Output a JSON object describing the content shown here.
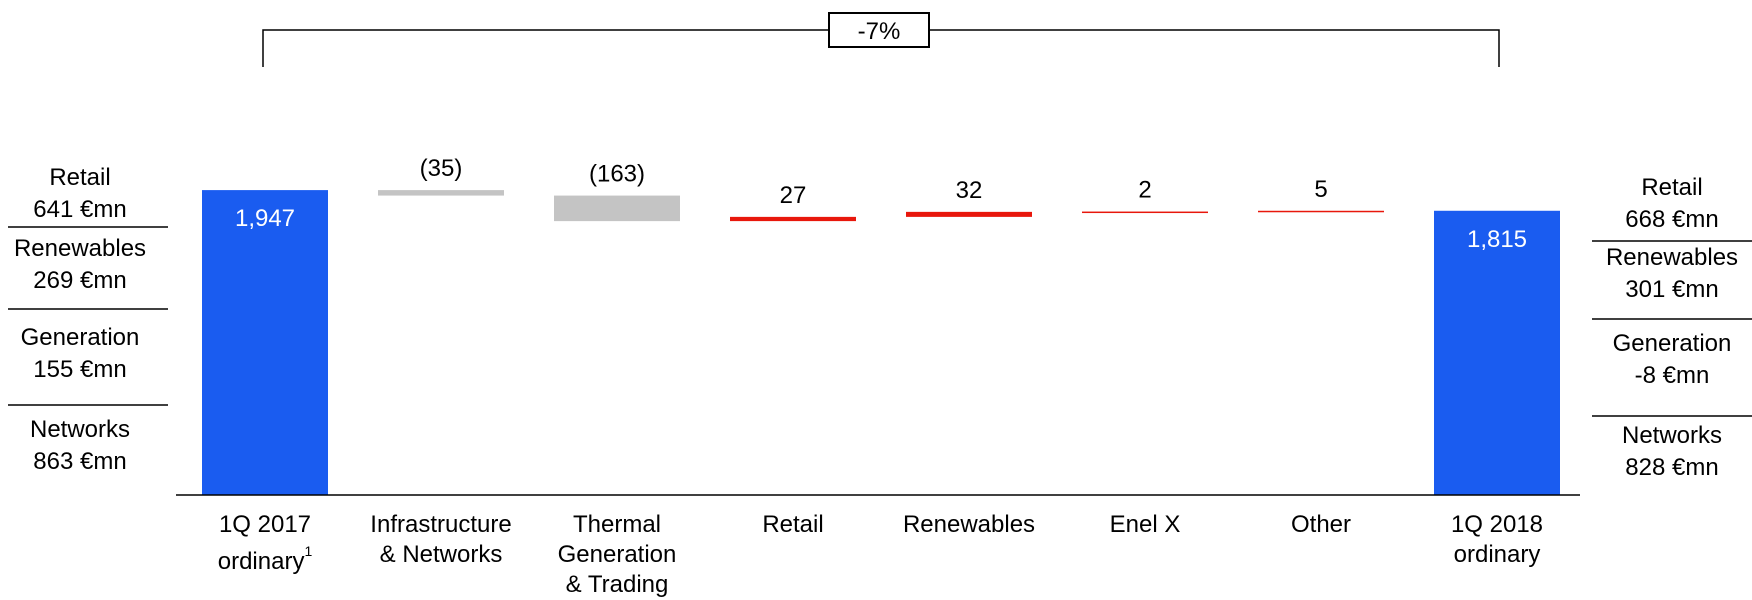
{
  "chart_data": {
    "type": "waterfall",
    "categories": [
      "1Q 2017\nordinary",
      "Infrastructure\n& Networks",
      "Thermal\nGeneration\n& Trading",
      "Retail",
      "Renewables",
      "Enel X",
      "Other",
      "1Q 2018\nordinary"
    ],
    "footnote_marks": [
      "1",
      "",
      "",
      "",
      "",
      "",
      "",
      ""
    ],
    "start_value": 1947,
    "deltas": [
      -35,
      -163,
      27,
      32,
      2,
      5
    ],
    "end_value": 1815,
    "value_labels": [
      "1,947",
      "(35)",
      "(163)",
      "27",
      "32",
      "2",
      "5",
      "1,815"
    ],
    "colors": {
      "total": "#1a5cf0",
      "negative": "#c4c4c4",
      "positive": "#e8170c"
    },
    "change_label": "-7%",
    "left_breakdown": [
      {
        "name": "Retail",
        "value": "641 €mn"
      },
      {
        "name": "Renewables",
        "value": "269 €mn"
      },
      {
        "name": "Generation",
        "value": "155 €mn"
      },
      {
        "name": "Networks",
        "value": "863 €mn"
      }
    ],
    "right_breakdown": [
      {
        "name": "Retail",
        "value": "668 €mn"
      },
      {
        "name": "Renewables",
        "value": "301 €mn"
      },
      {
        "name": "Generation",
        "value": "-8 €mn"
      },
      {
        "name": "Networks",
        "value": "828 €mn"
      }
    ]
  }
}
